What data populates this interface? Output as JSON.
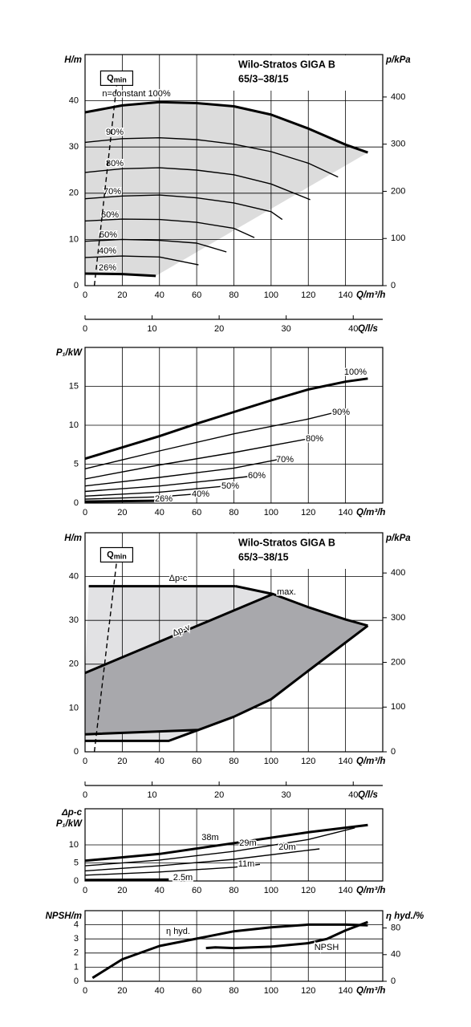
{
  "chart_data": [
    {
      "type": "line",
      "title": "Wilo-Stratos GIGA B",
      "subtitle": "65/3–38/15",
      "xlabel": "Q/m³/h",
      "ylabel": "H/m",
      "y2label": "p/kPa",
      "xlim": [
        0,
        160
      ],
      "xticks": [
        0,
        20,
        40,
        60,
        80,
        100,
        120,
        140
      ],
      "ylim": [
        0,
        50
      ],
      "yticks": [
        0,
        10,
        20,
        30,
        40
      ],
      "y2lim": [
        0,
        490
      ],
      "y2ticks": [
        0,
        100,
        200,
        300,
        400
      ],
      "x2label": "Q/l/s",
      "x2lim": [
        0,
        44.4
      ],
      "x2ticks": [
        0,
        10,
        20,
        30,
        40
      ],
      "grid": true,
      "color": "#000000",
      "fill": "#dcdcdc",
      "annotation": {
        "text": "Q",
        "subscript": "min"
      },
      "series": [
        {
          "name": "n=constant 100%",
          "bold": true,
          "x": [
            0,
            20,
            40,
            60,
            80,
            100,
            120,
            140,
            152
          ],
          "values": [
            37.5,
            39,
            39.7,
            39.5,
            38.8,
            37,
            34,
            30.5,
            28.8
          ]
        },
        {
          "name": "90%",
          "x": [
            0,
            20,
            40,
            60,
            80,
            100,
            120,
            136
          ],
          "values": [
            31,
            31.8,
            32,
            31.6,
            30.6,
            29,
            26.5,
            23.5
          ]
        },
        {
          "name": "80%",
          "x": [
            0,
            20,
            40,
            60,
            80,
            100,
            121
          ],
          "values": [
            24.5,
            25.3,
            25.5,
            25,
            24,
            22,
            18.6
          ]
        },
        {
          "name": "70%",
          "x": [
            0,
            20,
            40,
            60,
            80,
            100,
            106
          ],
          "values": [
            18.8,
            19.4,
            19.6,
            19,
            17.9,
            16,
            14.3
          ]
        },
        {
          "name": "60%",
          "x": [
            0,
            20,
            40,
            60,
            80,
            91
          ],
          "values": [
            14,
            14.4,
            14.3,
            13.7,
            12.4,
            10.4
          ]
        },
        {
          "name": "50%",
          "x": [
            0,
            20,
            40,
            60,
            76
          ],
          "values": [
            9.6,
            10,
            9.8,
            9.2,
            7.3
          ]
        },
        {
          "name": "40%",
          "x": [
            0,
            20,
            40,
            61
          ],
          "values": [
            6.1,
            6.4,
            6.2,
            4.5
          ]
        },
        {
          "name": "26%",
          "bold": true,
          "x": [
            0,
            20,
            38
          ],
          "values": [
            2.6,
            2.5,
            2.1
          ]
        },
        {
          "dash": true,
          "x": [
            5,
            17
          ],
          "values": [
            0,
            43.5
          ]
        }
      ]
    },
    {
      "type": "line",
      "xlabel": "Q/m³/h",
      "ylabel": "P₁/kW",
      "xlim": [
        0,
        160
      ],
      "xticks": [
        0,
        20,
        40,
        60,
        80,
        100,
        120,
        140
      ],
      "ylim": [
        0,
        20
      ],
      "yticks": [
        0,
        5,
        10,
        15
      ],
      "grid": true,
      "color": "#000000",
      "series": [
        {
          "name": "100%",
          "bold": true,
          "x": [
            0,
            40,
            60,
            80,
            100,
            120,
            140,
            152
          ],
          "values": [
            5.7,
            8.6,
            10.2,
            11.7,
            13.2,
            14.6,
            15.6,
            16
          ]
        },
        {
          "name": "90%",
          "x": [
            0,
            40,
            80,
            120,
            137
          ],
          "values": [
            4.4,
            6.7,
            8.9,
            10.8,
            11.8
          ]
        },
        {
          "name": "80%",
          "x": [
            0,
            40,
            80,
            121
          ],
          "values": [
            3.1,
            4.9,
            6.5,
            8.3
          ]
        },
        {
          "name": "70%",
          "x": [
            0,
            40,
            80,
            106
          ],
          "values": [
            2.2,
            3.3,
            4.5,
            5.7
          ]
        },
        {
          "name": "60%",
          "x": [
            0,
            40,
            80,
            91
          ],
          "values": [
            1.5,
            2.2,
            3.2,
            3.5
          ]
        },
        {
          "name": "50%",
          "x": [
            0,
            40,
            76
          ],
          "values": [
            0.9,
            1.4,
            2.2
          ]
        },
        {
          "name": "40%",
          "x": [
            0,
            40,
            61
          ],
          "values": [
            0.5,
            0.8,
            1.2
          ]
        },
        {
          "name": "26%",
          "bold": true,
          "x": [
            0,
            38
          ],
          "values": [
            0.2,
            0.3
          ]
        }
      ]
    },
    {
      "type": "area",
      "title": "Wilo-Stratos GIGA B",
      "subtitle": "65/3–38/15",
      "xlabel": "Q/m³/h",
      "ylabel": "H/m",
      "y2label": "p/kPa",
      "xlim": [
        0,
        160
      ],
      "xticks": [
        0,
        20,
        40,
        60,
        80,
        100,
        120,
        140
      ],
      "ylim": [
        0,
        50
      ],
      "yticks": [
        0,
        10,
        20,
        30,
        40
      ],
      "y2lim": [
        0,
        490
      ],
      "y2ticks": [
        0,
        100,
        200,
        300,
        400
      ],
      "x2label": "Q/l/s",
      "x2lim": [
        0,
        44.4
      ],
      "x2ticks": [
        0,
        10,
        20,
        30,
        40
      ],
      "grid": true,
      "color": "#000000",
      "fill": "#e2e2e4",
      "fill_dark": "#a8a8ac",
      "annotation": {
        "text": "Q",
        "subscript": "min"
      },
      "series": [
        {
          "name": "Δp-c",
          "bold": true,
          "x": [
            2,
            81
          ],
          "values": [
            37.8,
            37.8
          ]
        },
        {
          "name": "max.",
          "bold": true,
          "x": [
            81,
            101,
            120,
            140,
            152
          ],
          "values": [
            37.8,
            36,
            33,
            30.2,
            28.8
          ]
        },
        {
          "name": "Δp-v",
          "bold": true,
          "x": [
            0,
            101
          ],
          "values": [
            18,
            36
          ]
        },
        {
          "bold": true,
          "x": [
            0,
            61,
            80,
            100,
            120,
            152
          ],
          "values": [
            4,
            5,
            8,
            12,
            18.5,
            28.8
          ]
        },
        {
          "bold": true,
          "x": [
            0,
            45,
            61
          ],
          "values": [
            2.5,
            2.5,
            5
          ]
        },
        {
          "dash": true,
          "x": [
            5,
            17
          ],
          "values": [
            0,
            43.5
          ]
        }
      ]
    },
    {
      "type": "line",
      "xlabel": "Q/m³/h",
      "ylabel": [
        "Δp-c",
        "P₁/kW"
      ],
      "xlim": [
        0,
        160
      ],
      "xticks": [
        0,
        20,
        40,
        60,
        80,
        100,
        120,
        140
      ],
      "ylim": [
        0,
        20
      ],
      "yticks": [
        0,
        5,
        10
      ],
      "grid": true,
      "color": "#000000",
      "series": [
        {
          "name": "38m",
          "bold": true,
          "x": [
            0,
            40,
            80,
            120,
            152
          ],
          "values": [
            5.6,
            7.5,
            10.5,
            13.5,
            15.5
          ]
        },
        {
          "name": "29m",
          "x": [
            0,
            40,
            80,
            120,
            145
          ],
          "values": [
            4.2,
            5.8,
            8.2,
            11.5,
            14.7
          ]
        },
        {
          "name": "20m",
          "x": [
            0,
            40,
            80,
            126
          ],
          "values": [
            2.8,
            4.2,
            6,
            8.9
          ]
        },
        {
          "name": "11m",
          "x": [
            0,
            40,
            80,
            94
          ],
          "values": [
            1.6,
            2.5,
            3.8,
            4.6
          ]
        },
        {
          "name": "2.5m",
          "bold": true,
          "x": [
            0,
            45
          ],
          "values": [
            0.3,
            0.4
          ]
        }
      ]
    },
    {
      "type": "line",
      "xlabel": "Q/m³/h",
      "ylabel": "NPSH/m",
      "y2label": "η hyd./%",
      "xlim": [
        0,
        160
      ],
      "xticks": [
        0,
        20,
        40,
        60,
        80,
        100,
        120,
        140
      ],
      "ylim": [
        0,
        5
      ],
      "yticks": [
        0,
        1,
        2,
        3,
        4
      ],
      "y2lim": [
        0,
        106
      ],
      "y2ticks": [
        0,
        40,
        80
      ],
      "grid": true,
      "color": "#000000",
      "series": [
        {
          "name": "η hyd.",
          "axis": "y2",
          "bold": true,
          "x": [
            4,
            20,
            40,
            60,
            80,
            100,
            120,
            140,
            152
          ],
          "values": [
            5,
            33,
            53,
            64,
            75,
            81,
            85,
            85,
            84
          ]
        },
        {
          "name": "NPSH",
          "bold": true,
          "x": [
            65,
            70,
            80,
            100,
            120,
            130,
            140,
            152
          ],
          "values": [
            2.35,
            2.4,
            2.35,
            2.45,
            2.7,
            3.0,
            3.6,
            4.2
          ]
        }
      ]
    }
  ]
}
